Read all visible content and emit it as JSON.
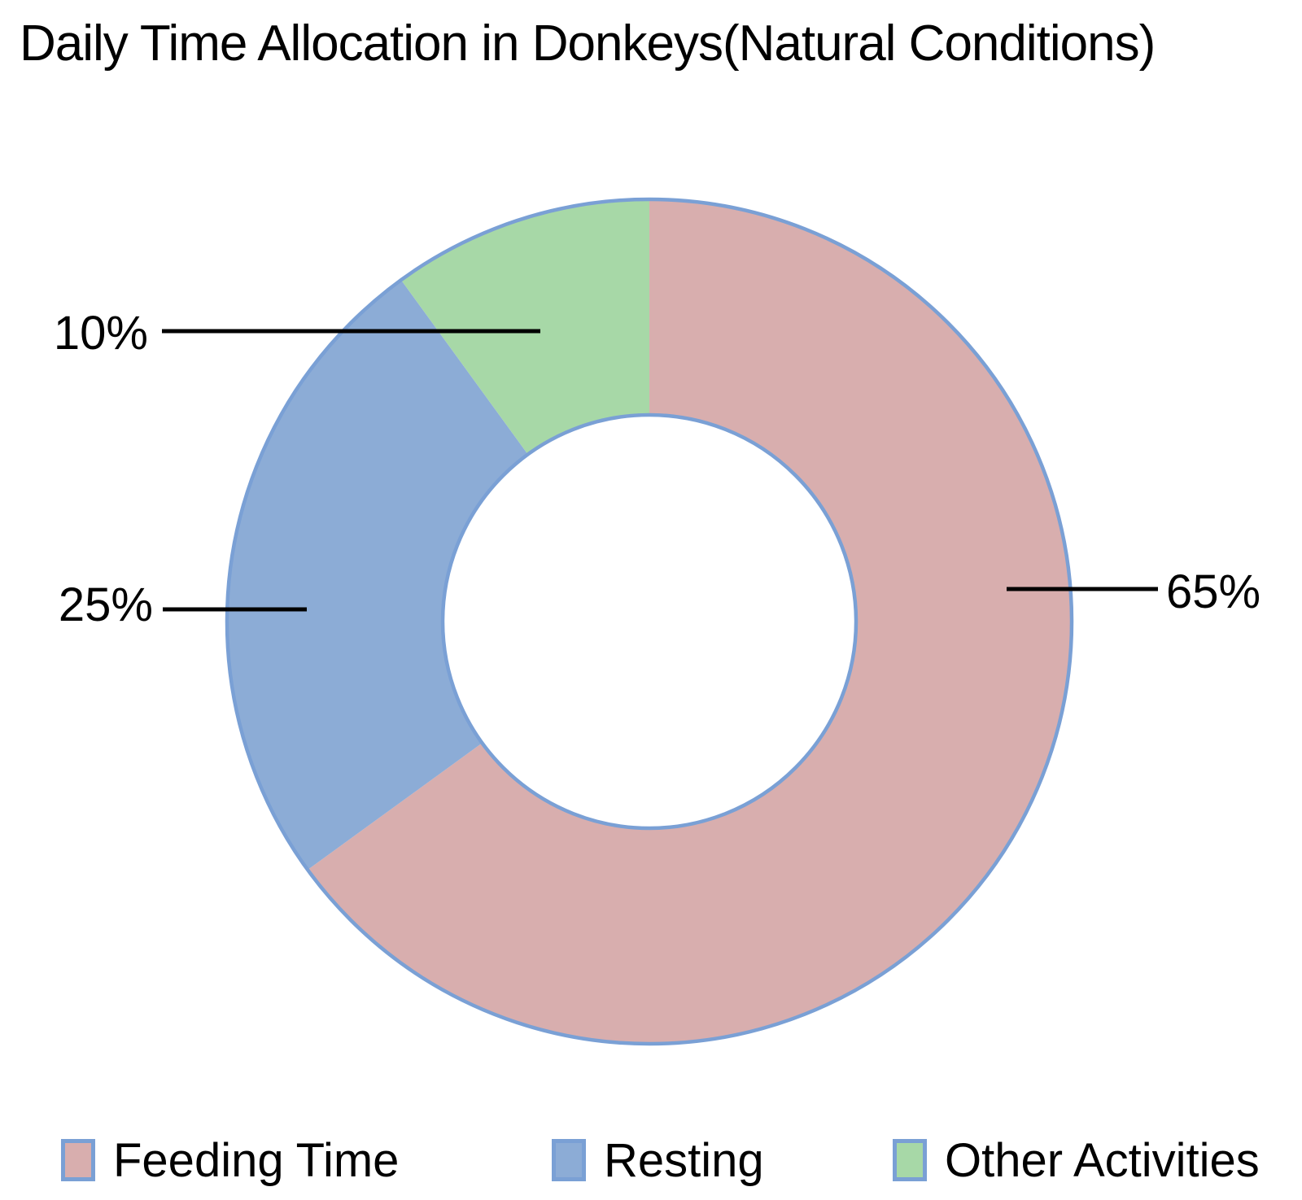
{
  "title": "Daily Time Allocation in Donkeys(Natural Conditions)",
  "chart_data": {
    "type": "pie",
    "subtype": "donut",
    "title": "Daily Time Allocation in Donkeys(Natural Conditions)",
    "categories": [
      "Feeding Time",
      "Resting",
      "Other Activities"
    ],
    "values": [
      65,
      25,
      10
    ],
    "unit": "%",
    "labels": [
      "65%",
      "25%",
      "10%"
    ],
    "colors": [
      "#d8aeae",
      "#8cacd6",
      "#a7d8a7"
    ],
    "stroke_color": "#7aa0d5",
    "leader_line_color": "#000000",
    "start_angle_deg": 0,
    "direction": "clockwise",
    "inner_radius_ratio": 0.49,
    "legend_position": "bottom",
    "grid": false
  },
  "legend": {
    "items": [
      {
        "label": "Feeding Time",
        "color": "#d8aeae"
      },
      {
        "label": "Resting",
        "color": "#8cacd6"
      },
      {
        "label": "Other Activities",
        "color": "#a7d8a7"
      }
    ]
  }
}
